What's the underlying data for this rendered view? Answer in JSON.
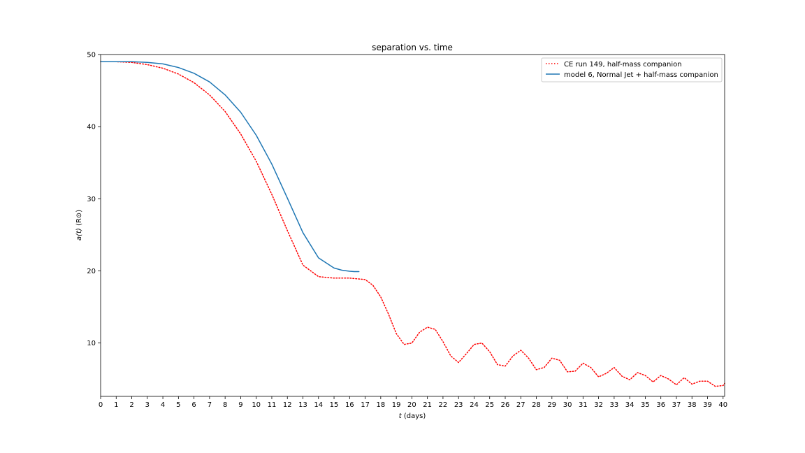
{
  "chart_data": {
    "type": "line",
    "title": "separation vs. time",
    "xlabel_var": "t",
    "xlabel_unit": " (days)",
    "ylabel_var": "a(t)",
    "ylabel_unit": " (R⊙)",
    "xlim": [
      0,
      40.1
    ],
    "ylim": [
      2.6,
      50
    ],
    "x_ticks": [
      0,
      1,
      2,
      3,
      4,
      5,
      6,
      7,
      8,
      9,
      10,
      11,
      12,
      13,
      14,
      15,
      16,
      17,
      18,
      19,
      20,
      21,
      22,
      23,
      24,
      25,
      26,
      27,
      28,
      29,
      30,
      31,
      32,
      33,
      34,
      35,
      36,
      37,
      38,
      39,
      40
    ],
    "y_ticks": [
      10,
      20,
      30,
      40,
      50
    ],
    "grid": false,
    "legend_position": "upper right",
    "series": [
      {
        "name": "CE run 149, half-mass companion",
        "color": "#ff0000",
        "style": "dotted",
        "x": [
          0,
          1,
          2,
          3,
          4,
          5,
          6,
          7,
          8,
          9,
          10,
          11,
          12,
          13,
          14,
          15,
          16,
          17,
          17.5,
          18,
          18.5,
          19,
          19.5,
          20,
          20.5,
          21,
          21.5,
          22,
          22.5,
          23,
          23.5,
          24,
          24.5,
          25,
          25.5,
          26,
          26.5,
          27,
          27.5,
          28,
          28.5,
          29,
          29.5,
          30,
          30.5,
          31,
          31.5,
          32,
          32.5,
          33,
          33.5,
          34,
          34.5,
          35,
          35.5,
          36,
          36.5,
          37,
          37.5,
          38,
          38.5,
          39,
          39.5,
          40,
          40.1
        ],
        "y": [
          49,
          49,
          48.9,
          48.6,
          48.1,
          47.3,
          46.1,
          44.4,
          42.1,
          39.0,
          35.2,
          30.6,
          25.6,
          20.8,
          19.2,
          19.0,
          19.0,
          18.8,
          18.0,
          16.4,
          14.0,
          11.3,
          9.8,
          10.0,
          11.5,
          12.2,
          11.9,
          10.2,
          8.2,
          7.3,
          8.5,
          9.8,
          10.0,
          8.8,
          7.0,
          6.8,
          8.2,
          9.0,
          7.9,
          6.3,
          6.6,
          7.9,
          7.6,
          6.0,
          6.1,
          7.2,
          6.6,
          5.3,
          5.8,
          6.6,
          5.4,
          4.9,
          5.9,
          5.5,
          4.6,
          5.5,
          5.0,
          4.2,
          5.2,
          4.3,
          4.7,
          4.7,
          4.0,
          4.1,
          4.4
        ]
      },
      {
        "name": "model 6, Normal Jet + half-mass companion",
        "color": "#1f77b4",
        "style": "solid",
        "x": [
          0,
          1,
          2,
          3,
          4,
          5,
          6,
          7,
          8,
          9,
          10,
          11,
          12,
          13,
          14,
          15,
          15.5,
          16,
          16.3,
          16.6
        ],
        "y": [
          49,
          49,
          49,
          48.9,
          48.7,
          48.2,
          47.4,
          46.2,
          44.4,
          42.0,
          38.8,
          34.8,
          30.1,
          25.3,
          21.8,
          20.4,
          20.1,
          19.95,
          19.9,
          19.9
        ]
      }
    ]
  }
}
